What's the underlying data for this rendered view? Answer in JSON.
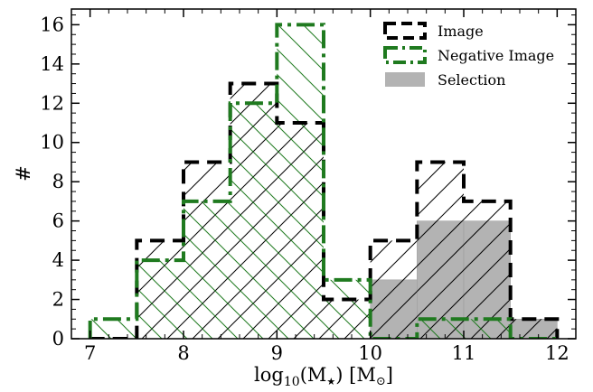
{
  "chart_data": {
    "type": "histogram",
    "title": "",
    "xlabel_main": "log",
    "xlabel_sub": "10",
    "xlabel_rest": "(M",
    "xlabel_star": "★",
    "xlabel_unit": ") [M",
    "xlabel_sun": "⊙",
    "xlabel_close": "]",
    "ylabel": "#",
    "xlim": [
      6.8,
      12.2
    ],
    "ylim": [
      0,
      16.8
    ],
    "xticks": [
      7,
      8,
      9,
      10,
      11,
      12
    ],
    "yticks": [
      0,
      2,
      4,
      6,
      8,
      10,
      12,
      14,
      16
    ],
    "bin_edges": [
      7.0,
      7.5,
      8.0,
      8.5,
      9.0,
      9.5,
      10.0,
      10.5,
      11.0,
      11.5,
      12.0
    ],
    "legend_position": "top-right",
    "series": [
      {
        "name": "Image",
        "style": "dashed",
        "color": "#000000",
        "values": [
          0,
          5,
          9,
          13,
          11,
          2,
          5,
          9,
          7,
          1
        ]
      },
      {
        "name": "Negative Image",
        "style": "dashdot",
        "color": "#1f7a1f",
        "values": [
          1,
          4,
          7,
          12,
          16,
          3,
          0,
          1,
          1,
          0
        ]
      },
      {
        "name": "Selection",
        "style": "filled",
        "color": "#b3b3b3",
        "values": [
          0,
          0,
          0,
          0,
          0,
          0,
          3,
          6,
          6,
          1
        ]
      }
    ]
  }
}
